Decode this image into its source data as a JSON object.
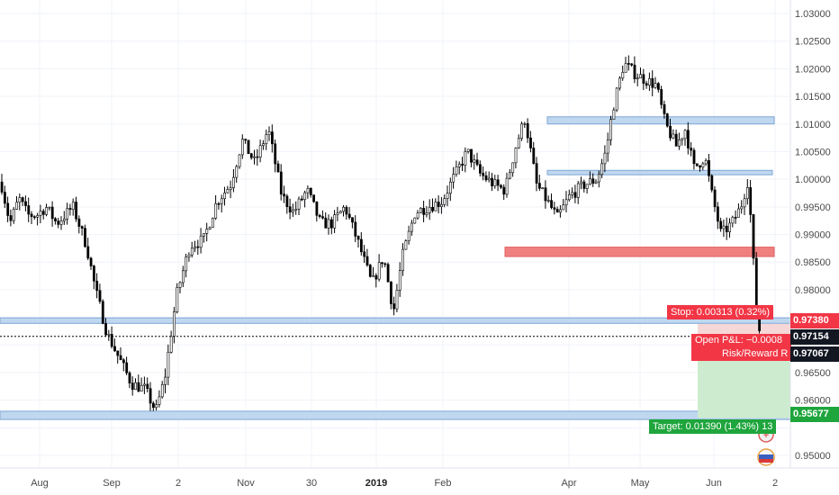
{
  "chart_data": {
    "type": "candlestick",
    "ylim": [
      0.947,
      1.031
    ],
    "yticks": [
      1.03,
      1.025,
      1.02,
      1.015,
      1.01,
      1.005,
      1.0,
      0.995,
      0.99,
      0.985,
      0.98,
      0.975,
      0.97,
      0.965,
      0.96,
      0.955,
      0.95
    ],
    "ytick_labels": [
      "1.03000",
      "1.02500",
      "1.02000",
      "1.01500",
      "1.01000",
      "1.00500",
      "1.00000",
      "0.99500",
      "0.99000",
      "0.98500",
      "0.98000",
      "",
      "",
      "0.96500",
      "0.96000",
      "",
      "0.95000"
    ],
    "xticks": [
      {
        "label": "Aug",
        "bold": false
      },
      {
        "label": "Sep",
        "bold": false
      },
      {
        "label": "2",
        "bold": false
      },
      {
        "label": "Nov",
        "bold": false
      },
      {
        "label": "30",
        "bold": false
      },
      {
        "label": "2019",
        "bold": true
      },
      {
        "label": "Feb",
        "bold": false
      },
      {
        "label": "Apr",
        "bold": false
      },
      {
        "label": "May",
        "bold": false
      },
      {
        "label": "Jun",
        "bold": false
      },
      {
        "label": "2",
        "bold": false
      }
    ],
    "anchors": [
      [
        0,
        0.9995
      ],
      [
        10,
        0.992
      ],
      [
        20,
        0.9965
      ],
      [
        30,
        0.9935
      ],
      [
        40,
        0.9935
      ],
      [
        50,
        0.995
      ],
      [
        62,
        0.992
      ],
      [
        80,
        0.995
      ],
      [
        95,
        0.988
      ],
      [
        105,
        0.98
      ],
      [
        118,
        0.972
      ],
      [
        130,
        0.968
      ],
      [
        145,
        0.963
      ],
      [
        160,
        0.962
      ],
      [
        172,
        0.958
      ],
      [
        182,
        0.964
      ],
      [
        195,
        0.979
      ],
      [
        210,
        0.988
      ],
      [
        225,
        0.989
      ],
      [
        240,
        0.996
      ],
      [
        255,
        0.999
      ],
      [
        268,
        1.007
      ],
      [
        282,
        1.003
      ],
      [
        297,
        1.009
      ],
      [
        312,
        0.997
      ],
      [
        325,
        0.994
      ],
      [
        340,
        0.998
      ],
      [
        355,
        0.992
      ],
      [
        368,
        0.992
      ],
      [
        382,
        0.995
      ],
      [
        398,
        0.988
      ],
      [
        412,
        0.981
      ],
      [
        425,
        0.986
      ],
      [
        436,
        0.976
      ],
      [
        446,
        0.986
      ],
      [
        460,
        0.994
      ],
      [
        474,
        0.995
      ],
      [
        490,
        0.996
      ],
      [
        502,
        1.0
      ],
      [
        518,
        1.005
      ],
      [
        532,
        1.001
      ],
      [
        548,
        0.999
      ],
      [
        560,
        0.998
      ],
      [
        572,
        1.006
      ],
      [
        582,
        1.011
      ],
      [
        595,
        0.999
      ],
      [
        607,
        0.996
      ],
      [
        618,
        0.993
      ],
      [
        632,
        0.997
      ],
      [
        648,
        0.999
      ],
      [
        662,
        1.0
      ],
      [
        672,
        1.005
      ],
      [
        680,
        1.013
      ],
      [
        692,
        1.021
      ],
      [
        705,
        1.019
      ],
      [
        716,
        1.018
      ],
      [
        728,
        1.017
      ],
      [
        738,
        1.01
      ],
      [
        750,
        1.006
      ],
      [
        760,
        1.009
      ],
      [
        770,
        1.002
      ],
      [
        782,
        1.004
      ],
      [
        790,
        0.997
      ],
      [
        800,
        0.99
      ],
      [
        812,
        0.992
      ],
      [
        822,
        0.995
      ],
      [
        830,
        1.0
      ],
      [
        834,
        0.99
      ],
      [
        838,
        0.979
      ],
      [
        842,
        0.973
      ],
      [
        845,
        0.9715
      ]
    ],
    "hlines_blue": [
      {
        "y1": 1.0113,
        "y2": 1.01,
        "x1": 608,
        "x2": 860
      },
      {
        "y1": 1.0016,
        "y2": 1.0008,
        "x1": 608,
        "x2": 858
      },
      {
        "y1": 0.9749,
        "y2": 0.9739,
        "x1": 0,
        "x2": 878
      },
      {
        "y1": 0.958,
        "y2": 0.9565,
        "x1": 0,
        "x2": 878
      }
    ],
    "hline_red": {
      "y1": 0.9877,
      "y2": 0.986,
      "x1": 561,
      "x2": 860
    },
    "position": {
      "entry": 0.97067,
      "stop": 0.9738,
      "target": 0.95677,
      "x1": 775,
      "x2": 878
    },
    "current_price": 0.97154
  },
  "labels": {
    "stop": "Stop: 0.00313 (0.32%)",
    "pnl_line1": "Open P&L: −0.0008",
    "pnl_line2": "Risk/Reward R",
    "target": "Target: 0.01390 (1.43%) 13",
    "badge_stop": "0.97380",
    "badge_current": "0.97154",
    "badge_entry": "0.97067",
    "badge_target": "0.95677"
  },
  "colors": {
    "bull": "#ffffff",
    "bear": "#000000",
    "blue_zone": "#bfd7ef",
    "blue_border": "#7fa7d6",
    "red_zone": "#f08080",
    "stop_red": "#f23645",
    "target_green": "#1ea53c",
    "profit_fill": "#cdebcf",
    "loss_fill": "#f6d7d7"
  }
}
